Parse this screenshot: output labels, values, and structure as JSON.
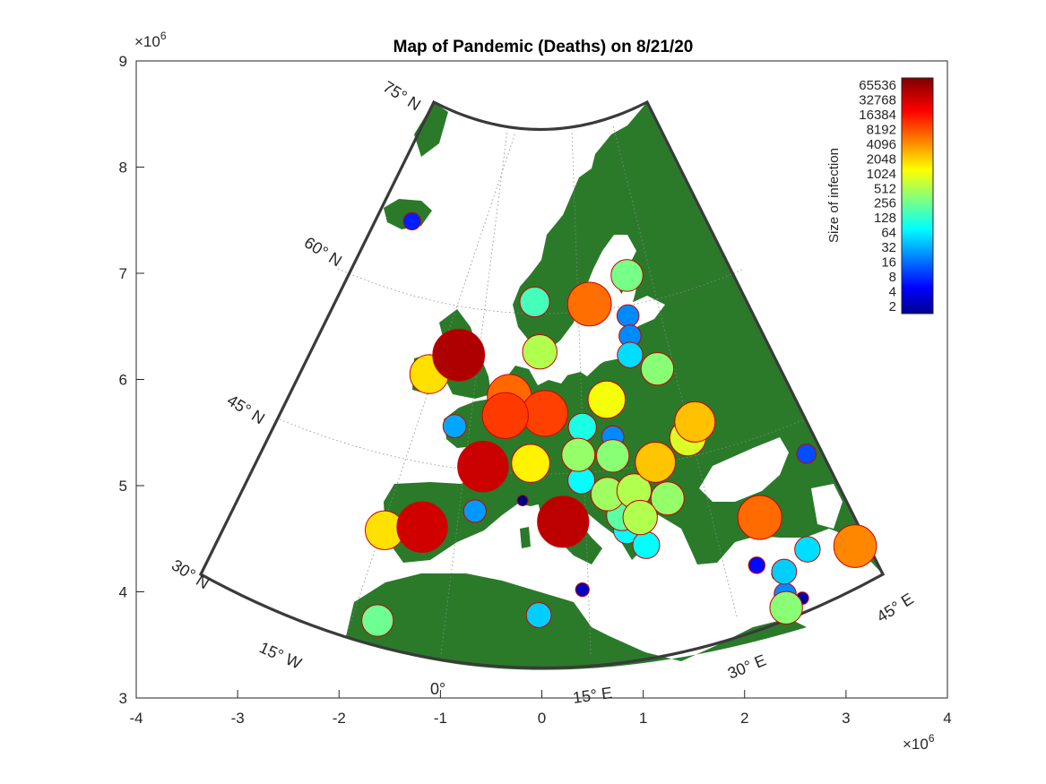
{
  "figure": {
    "title": "Map of Pandemic (Deaths) on 8/21/20"
  },
  "axes": {
    "x_ticks": [
      "-4",
      "-3",
      "-2",
      "-1",
      "0",
      "1",
      "2",
      "3",
      "4"
    ],
    "y_ticks": [
      "3",
      "4",
      "5",
      "6",
      "7",
      "8",
      "9"
    ],
    "x_exponent": "×10",
    "x_exponent_power": "6",
    "y_exponent": "×10",
    "y_exponent_power": "6",
    "xlim": [
      -4,
      4
    ],
    "ylim": [
      3,
      9
    ]
  },
  "graticule": {
    "lat_labels": [
      "30° N",
      "45° N",
      "60° N",
      "75° N"
    ],
    "lon_labels": [
      "15° W",
      "0°",
      "15° E",
      "30° E",
      "45° E"
    ]
  },
  "colorbar": {
    "label": "Size of infection",
    "ticks": [
      "65536",
      "32768",
      "16384",
      "8192",
      "4096",
      "2048",
      "1024",
      "512",
      "256",
      "128",
      "64",
      "32",
      "16",
      "8",
      "4",
      "2"
    ],
    "colormap": "jet",
    "scale": "log2"
  },
  "colors": {
    "land": "#2a7a2a",
    "sea": "#ffffff",
    "frame": "#3a3a3a",
    "marker_edge": "#cc0000"
  },
  "chart_data": {
    "type": "scatter",
    "title": "Map of Pandemic (Deaths) on 8/21/20",
    "xlabel": "",
    "ylabel": "",
    "xlim": [
      -4,
      4
    ],
    "ylim": [
      3,
      9
    ],
    "units": "×10^6",
    "color_scale": "log2 deaths, colorbar 2–65536",
    "points": [
      {
        "x": -1.28,
        "y": 7.49,
        "deaths": 10
      },
      {
        "x": -0.82,
        "y": 6.23,
        "deaths": 41000
      },
      {
        "x": -1.11,
        "y": 6.05,
        "deaths": 1800
      },
      {
        "x": -0.32,
        "y": 5.84,
        "deaths": 6200
      },
      {
        "x": -0.36,
        "y": 5.66,
        "deaths": 9900
      },
      {
        "x": 0.03,
        "y": 5.68,
        "deaths": 9300
      },
      {
        "x": -0.86,
        "y": 5.56,
        "deaths": 40
      },
      {
        "x": -0.58,
        "y": 5.18,
        "deaths": 30500
      },
      {
        "x": -0.11,
        "y": 5.21,
        "deaths": 1500
      },
      {
        "x": -1.55,
        "y": 4.58,
        "deaths": 1800
      },
      {
        "x": -1.18,
        "y": 4.61,
        "deaths": 28800
      },
      {
        "x": -0.66,
        "y": 4.76,
        "deaths": 35
      },
      {
        "x": -0.19,
        "y": 4.86,
        "deaths": 2
      },
      {
        "x": 0.21,
        "y": 4.66,
        "deaths": 35400
      },
      {
        "x": 0.4,
        "y": 4.02,
        "deaths": 4
      },
      {
        "x": -0.03,
        "y": 3.78,
        "deaths": 60
      },
      {
        "x": -1.62,
        "y": 3.73,
        "deaths": 300
      },
      {
        "x": -0.07,
        "y": 6.73,
        "deaths": 200
      },
      {
        "x": 0.47,
        "y": 6.71,
        "deaths": 5800
      },
      {
        "x": 0.84,
        "y": 6.98,
        "deaths": 330
      },
      {
        "x": 0.85,
        "y": 6.6,
        "deaths": 30
      },
      {
        "x": 0.87,
        "y": 6.41,
        "deaths": 30
      },
      {
        "x": 0.87,
        "y": 6.23,
        "deaths": 70
      },
      {
        "x": 1.14,
        "y": 6.1,
        "deaths": 400
      },
      {
        "x": -0.02,
        "y": 6.26,
        "deaths": 600
      },
      {
        "x": 0.64,
        "y": 5.81,
        "deaths": 1200
      },
      {
        "x": 0.4,
        "y": 5.55,
        "deaths": 130
      },
      {
        "x": 0.7,
        "y": 5.46,
        "deaths": 30
      },
      {
        "x": 0.36,
        "y": 5.29,
        "deaths": 450
      },
      {
        "x": 0.7,
        "y": 5.28,
        "deaths": 400
      },
      {
        "x": 1.12,
        "y": 5.22,
        "deaths": 2400
      },
      {
        "x": 1.44,
        "y": 5.45,
        "deaths": 900
      },
      {
        "x": 1.51,
        "y": 5.6,
        "deaths": 2500
      },
      {
        "x": 0.39,
        "y": 5.05,
        "deaths": 100
      },
      {
        "x": 0.65,
        "y": 4.92,
        "deaths": 500
      },
      {
        "x": 0.91,
        "y": 4.95,
        "deaths": 600
      },
      {
        "x": 1.24,
        "y": 4.88,
        "deaths": 450
      },
      {
        "x": 0.79,
        "y": 4.72,
        "deaths": 250
      },
      {
        "x": 0.97,
        "y": 4.7,
        "deaths": 600
      },
      {
        "x": 0.84,
        "y": 4.58,
        "deaths": 100
      },
      {
        "x": 1.03,
        "y": 4.44,
        "deaths": 100
      },
      {
        "x": 2.15,
        "y": 4.7,
        "deaths": 6000
      },
      {
        "x": 2.61,
        "y": 5.3,
        "deaths": 16
      },
      {
        "x": 2.12,
        "y": 4.25,
        "deaths": 8
      },
      {
        "x": 2.39,
        "y": 4.19,
        "deaths": 60
      },
      {
        "x": 2.62,
        "y": 4.4,
        "deaths": 70
      },
      {
        "x": 2.4,
        "y": 3.98,
        "deaths": 30
      },
      {
        "x": 2.57,
        "y": 3.94,
        "deaths": 3
      },
      {
        "x": 2.41,
        "y": 3.85,
        "deaths": 400
      },
      {
        "x": 3.09,
        "y": 4.43,
        "deaths": 4500
      }
    ]
  }
}
